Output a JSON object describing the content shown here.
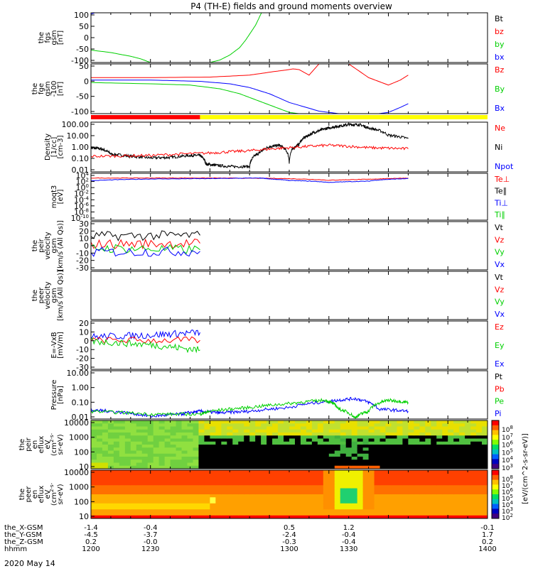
{
  "title": "P4 (TH-E) fields and ground moments overview",
  "date_label": "2020 May 14",
  "colors": {
    "black": "#000000",
    "red": "#ff0000",
    "green": "#00d000",
    "blue": "#0000ff",
    "yellow": "#ffff00"
  },
  "chart_data": [
    {
      "type": "line",
      "id": "fgs",
      "ylabel": [
        "the",
        "fgs",
        "gsm",
        "[nT]"
      ],
      "yticks": [
        "100",
        "50",
        "0",
        "-50",
        "-100"
      ],
      "ylim": [
        -100,
        100
      ],
      "legend": [
        {
          "label": "Bt",
          "color": "black"
        },
        {
          "label": "bz",
          "color": "red"
        },
        {
          "label": "by",
          "color": "green"
        },
        {
          "label": "bx",
          "color": "blue"
        }
      ],
      "series": [
        {
          "name": "bx",
          "color": "blue",
          "x": [
            1200,
            1202
          ],
          "y": [
            95,
            100
          ]
        },
        {
          "name": "by",
          "color": "green",
          "x": [
            1200,
            1210,
            1220,
            1225,
            1230,
            1240,
            1250,
            1260,
            1265,
            1270,
            1275,
            1278,
            1283,
            1286,
            1287,
            1290,
            1300,
            1310,
            1320,
            1330,
            1335
          ],
          "y": [
            -50,
            -60,
            -75,
            -85,
            -100,
            -100,
            -100,
            -100,
            -90,
            -70,
            -40,
            -10,
            50,
            100,
            100,
            100,
            100,
            100,
            100,
            100,
            100
          ]
        }
      ]
    },
    {
      "type": "line",
      "id": "fge",
      "ylabel": [
        "the",
        "fge",
        "gsm",
        "-100",
        "[nT]"
      ],
      "yticks": [
        "50",
        "0",
        "-50",
        "-100"
      ],
      "ylim": [
        -125,
        75
      ],
      "legend": [
        {
          "label": "Bz",
          "color": "red"
        },
        {
          "label": "By",
          "color": "green"
        },
        {
          "label": "Bx",
          "color": "blue"
        }
      ],
      "series": [
        {
          "name": "Bz",
          "color": "red",
          "x": [
            1200,
            1230,
            1260,
            1280,
            1293,
            1298,
            1302,
            1305,
            1310,
            1315,
            1325,
            1330,
            1340,
            1350,
            1356,
            1360
          ],
          "y": [
            20,
            20,
            22,
            30,
            45,
            50,
            55,
            52,
            30,
            75,
            75,
            75,
            20,
            -10,
            10,
            30
          ]
        },
        {
          "name": "By",
          "color": "green",
          "x": [
            1200,
            1230,
            1250,
            1265,
            1275,
            1280,
            1290,
            1300,
            1305
          ],
          "y": [
            0,
            -5,
            -10,
            -25,
            -45,
            -60,
            -90,
            -120,
            -125
          ]
        },
        {
          "name": "Bx",
          "color": "blue",
          "x": [
            1200,
            1230,
            1255,
            1270,
            1280,
            1290,
            1300,
            1315,
            1325,
            1330,
            1345,
            1350,
            1356,
            1360
          ],
          "y": [
            10,
            10,
            5,
            -5,
            -20,
            -45,
            -80,
            -115,
            -125,
            -125,
            -125,
            -120,
            -100,
            -85
          ]
        }
      ]
    },
    {
      "type": "line",
      "id": "density",
      "log": true,
      "ylabel": [
        "Density",
        "[1/cc]",
        "[cm-3]"
      ],
      "yticks": [
        "100.00",
        "10.00",
        "1.00",
        "0.10",
        "0.01"
      ],
      "ylim": [
        0.01,
        300
      ],
      "legend": [
        {
          "label": "Ne",
          "color": "red"
        },
        {
          "label": "Ni",
          "color": "black"
        },
        {
          "label": "Npot",
          "color": "blue"
        }
      ],
      "series": [
        {
          "name": "Ni",
          "color": "black",
          "x": [
            1200,
            1205,
            1210,
            1220,
            1230,
            1240,
            1250,
            1255,
            1258,
            1262,
            1270,
            1280,
            1285,
            1290,
            1295,
            1300,
            1305,
            1310,
            1315,
            1320,
            1325,
            1330,
            1335,
            1340,
            1350,
            1360
          ],
          "y": [
            1.5,
            1.2,
            0.4,
            0.25,
            0.18,
            0.2,
            0.3,
            0.3,
            0.05,
            0.04,
            0.03,
            0.03,
            0.5,
            1.8,
            2.5,
            0.06,
            3,
            20,
            50,
            90,
            130,
            180,
            180,
            90,
            20,
            10
          ]
        },
        {
          "name": "Ne",
          "color": "red",
          "x": [
            1200,
            1230,
            1260,
            1280,
            1300,
            1320,
            1340,
            1360
          ],
          "y": [
            0.25,
            0.3,
            0.5,
            0.8,
            1.5,
            2.5,
            1.5,
            1.2
          ]
        }
      ]
    },
    {
      "type": "line",
      "id": "temp",
      "log": true,
      "ylabel": [
        "moqt3",
        "[eV]"
      ],
      "yticks": [
        "10^4",
        "10^2",
        "10^0",
        "10^-2",
        "10^-4",
        "10^-6",
        "10^-8",
        "10^-10"
      ],
      "ylim": [
        1e-10,
        100000.0
      ],
      "legend": [
        {
          "label": "Te⊥",
          "color": "red"
        },
        {
          "label": "Te∥",
          "color": "black"
        },
        {
          "label": "Ti⊥",
          "color": "blue"
        },
        {
          "label": "Ti∥",
          "color": "green"
        }
      ],
      "series": [
        {
          "name": "Te",
          "color": "red",
          "x": [
            1200,
            1230,
            1260,
            1290,
            1320,
            1340,
            1360
          ],
          "y": [
            3000,
            3000,
            3000,
            2500,
            600,
            1200,
            3000
          ]
        },
        {
          "name": "Ti",
          "color": "blue",
          "x": [
            1200,
            1230,
            1260,
            1285,
            1290,
            1300,
            1320,
            1340,
            1360
          ],
          "y": [
            400,
            1500,
            2000,
            3000,
            1500,
            500,
            120,
            300,
            2000
          ]
        }
      ]
    },
    {
      "type": "line",
      "id": "peir_vel",
      "ylabel": [
        "the",
        "peir",
        "velocity",
        "gsm",
        "[km/s (All Qs)]"
      ],
      "yticks": [
        "30",
        "20",
        "10",
        "0",
        "-10",
        "-20",
        "-30"
      ],
      "ylim": [
        -30,
        30
      ],
      "legend": [
        {
          "label": "Vt",
          "color": "black"
        },
        {
          "label": "Vz",
          "color": "red"
        },
        {
          "label": "Vy",
          "color": "green"
        },
        {
          "label": "Vx",
          "color": "blue"
        }
      ],
      "series": [
        {
          "name": "Vt",
          "color": "black",
          "x": [
            1200,
            1255
          ],
          "y": [
            12,
            13
          ]
        },
        {
          "name": "Vz",
          "color": "red",
          "x": [
            1200,
            1255
          ],
          "y": [
            2,
            3
          ]
        },
        {
          "name": "Vy",
          "color": "green",
          "x": [
            1200,
            1255
          ],
          "y": [
            -3,
            -5
          ]
        },
        {
          "name": "Vx",
          "color": "blue",
          "x": [
            1200,
            1255
          ],
          "y": [
            -8,
            -7
          ]
        }
      ]
    },
    {
      "type": "line",
      "id": "peer_vel",
      "ylabel": [
        "the",
        "peer",
        "velocity",
        "gsm",
        "[km/s (All Qs)]"
      ],
      "yticks": [],
      "ylim": [
        -30,
        30
      ],
      "legend": [
        {
          "label": "Vt",
          "color": "black"
        },
        {
          "label": "Vz",
          "color": "red"
        },
        {
          "label": "Vy",
          "color": "green"
        },
        {
          "label": "Vx",
          "color": "blue"
        }
      ],
      "series": []
    },
    {
      "type": "line",
      "id": "efield",
      "ylabel": [
        "E=-VxB",
        "[mV/m]"
      ],
      "yticks": [
        "20",
        "10",
        "0",
        "-10",
        "-20",
        "-30"
      ],
      "ylim": [
        -35,
        20
      ],
      "legend": [
        {
          "label": "Ez",
          "color": "red"
        },
        {
          "label": "Ey",
          "color": "green"
        },
        {
          "label": "Ex",
          "color": "blue"
        }
      ],
      "series": [
        {
          "name": "Ex",
          "color": "blue",
          "x": [
            1200,
            1230,
            1255
          ],
          "y": [
            2,
            4,
            7
          ]
        },
        {
          "name": "Ez",
          "color": "red",
          "x": [
            1200,
            1255
          ],
          "y": [
            -2,
            -2
          ]
        },
        {
          "name": "Ey",
          "color": "green",
          "x": [
            1200,
            1230,
            1255
          ],
          "y": [
            -3,
            -7,
            -13
          ]
        }
      ]
    },
    {
      "type": "line",
      "id": "pressure",
      "log": true,
      "ylabel": [
        "Pressure",
        "[nPa]"
      ],
      "yticks": [
        "10.00",
        "1.00",
        "0.10",
        "0.01"
      ],
      "ylim": [
        0.005,
        30
      ],
      "legend": [
        {
          "label": "Pt",
          "color": "black"
        },
        {
          "label": "Pb",
          "color": "red"
        },
        {
          "label": "Pe",
          "color": "green"
        },
        {
          "label": "Pi",
          "color": "blue"
        }
      ],
      "series": [
        {
          "name": "Pi",
          "color": "blue",
          "x": [
            1200,
            1210,
            1230,
            1245,
            1255,
            1265,
            1280,
            1300,
            1320,
            1333,
            1345,
            1360
          ],
          "y": [
            0.025,
            0.02,
            0.008,
            0.012,
            0.02,
            0.015,
            0.02,
            0.04,
            0.12,
            0.2,
            0.03,
            0.02
          ]
        },
        {
          "name": "Pe",
          "color": "green",
          "x": [
            1200,
            1230,
            1255,
            1260,
            1280,
            1300,
            1318,
            1325,
            1333,
            1340,
            1350,
            1360
          ],
          "y": [
            0.02,
            0.012,
            0.012,
            0.02,
            0.04,
            0.08,
            0.15,
            0.03,
            0.006,
            0.02,
            0.15,
            0.1
          ]
        }
      ]
    },
    {
      "type": "heatmap",
      "id": "peir_en",
      "ylabel": [
        "the",
        "peir",
        "en",
        "eflux",
        "eV",
        "(cm^2-s-",
        "sr-eV)"
      ],
      "yticks": [
        "10000",
        "1000",
        "100",
        "10"
      ]
    },
    {
      "type": "heatmap",
      "id": "peer_en",
      "ylabel": [
        "the",
        "peer",
        "en",
        "eflux",
        "eV",
        "(cm^2-s-",
        "sr-eV)"
      ],
      "yticks": [
        "10000",
        "1000",
        "100",
        "10"
      ]
    }
  ],
  "colorbar": {
    "label": "[eV/(cm^2-s-sr-eV)]",
    "label2": "[eV/(cm^2-s-sr-eV)]",
    "ticks_top": [
      "10^8",
      "10^7",
      "10^6",
      "10^5",
      "10^4",
      "10^3"
    ],
    "ticks_bottom": [
      "10^8",
      "10^7",
      "10^6",
      "10^5",
      "10^4",
      "10^3",
      "10^2"
    ]
  },
  "xaxis": {
    "x": [
      1200,
      1230,
      1300,
      1330,
      1400
    ],
    "rows": [
      {
        "label": "the_X-GSM",
        "values": [
          "-1.4",
          "-0.4",
          "0.5",
          "1.2",
          "-0.1"
        ]
      },
      {
        "label": "the_Y-GSM",
        "values": [
          "-4.5",
          "-3.7",
          "-2.4",
          "-0.4",
          "1.7"
        ]
      },
      {
        "label": "the_Z-GSM",
        "values": [
          "0.2",
          "-0.0",
          "-0.3",
          "-0.4",
          "0.2"
        ]
      },
      {
        "label": "hhmm",
        "values": [
          "1200",
          "1230",
          "1300",
          "1330",
          "1400"
        ]
      }
    ]
  }
}
